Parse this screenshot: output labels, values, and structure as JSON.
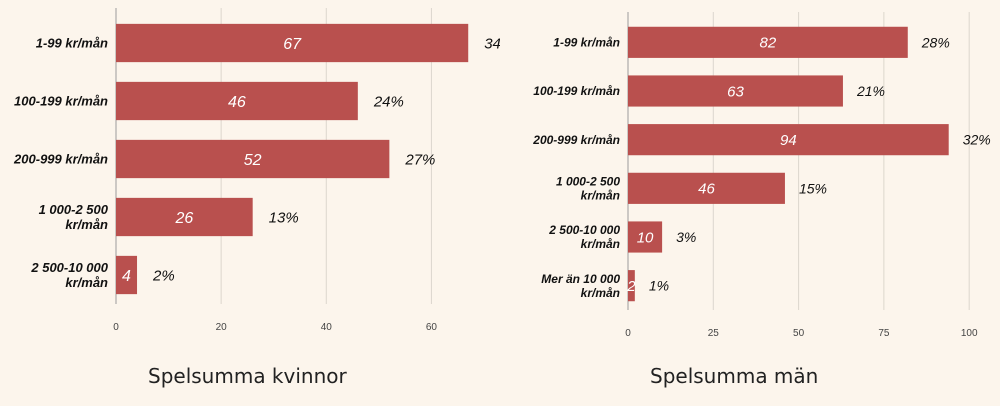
{
  "chart_data": [
    {
      "type": "bar",
      "orientation": "horizontal",
      "title": "Spelsumma kvinnor",
      "categories": [
        "1-99 kr/mån",
        "100-199 kr/mån",
        "200-999 kr/mån",
        "1 000-2 500 kr/mån",
        "2 500-10 000 kr/mån"
      ],
      "values": [
        67,
        46,
        52,
        26,
        4
      ],
      "percentages": [
        "34%",
        "24%",
        "27%",
        "13%",
        "2%"
      ],
      "xlim": [
        0,
        70
      ],
      "xticks": [
        0,
        20,
        40,
        60
      ],
      "grid": true,
      "bar_color": "#b9504e"
    },
    {
      "type": "bar",
      "orientation": "horizontal",
      "title": "Spelsumma män",
      "categories": [
        "1-99 kr/mån",
        "100-199 kr/mån",
        "200-999 kr/mån",
        "1 000-2 500 kr/mån",
        "2 500-10 000 kr/mån",
        "Mer än 10 000 kr/mån"
      ],
      "values": [
        82,
        63,
        94,
        46,
        10,
        2
      ],
      "percentages": [
        "28%",
        "21%",
        "32%",
        "15%",
        "3%",
        "1%"
      ],
      "xlim": [
        0,
        102
      ],
      "xticks": [
        0,
        25,
        50,
        75,
        100
      ],
      "grid": true,
      "bar_color": "#b9504e"
    }
  ]
}
